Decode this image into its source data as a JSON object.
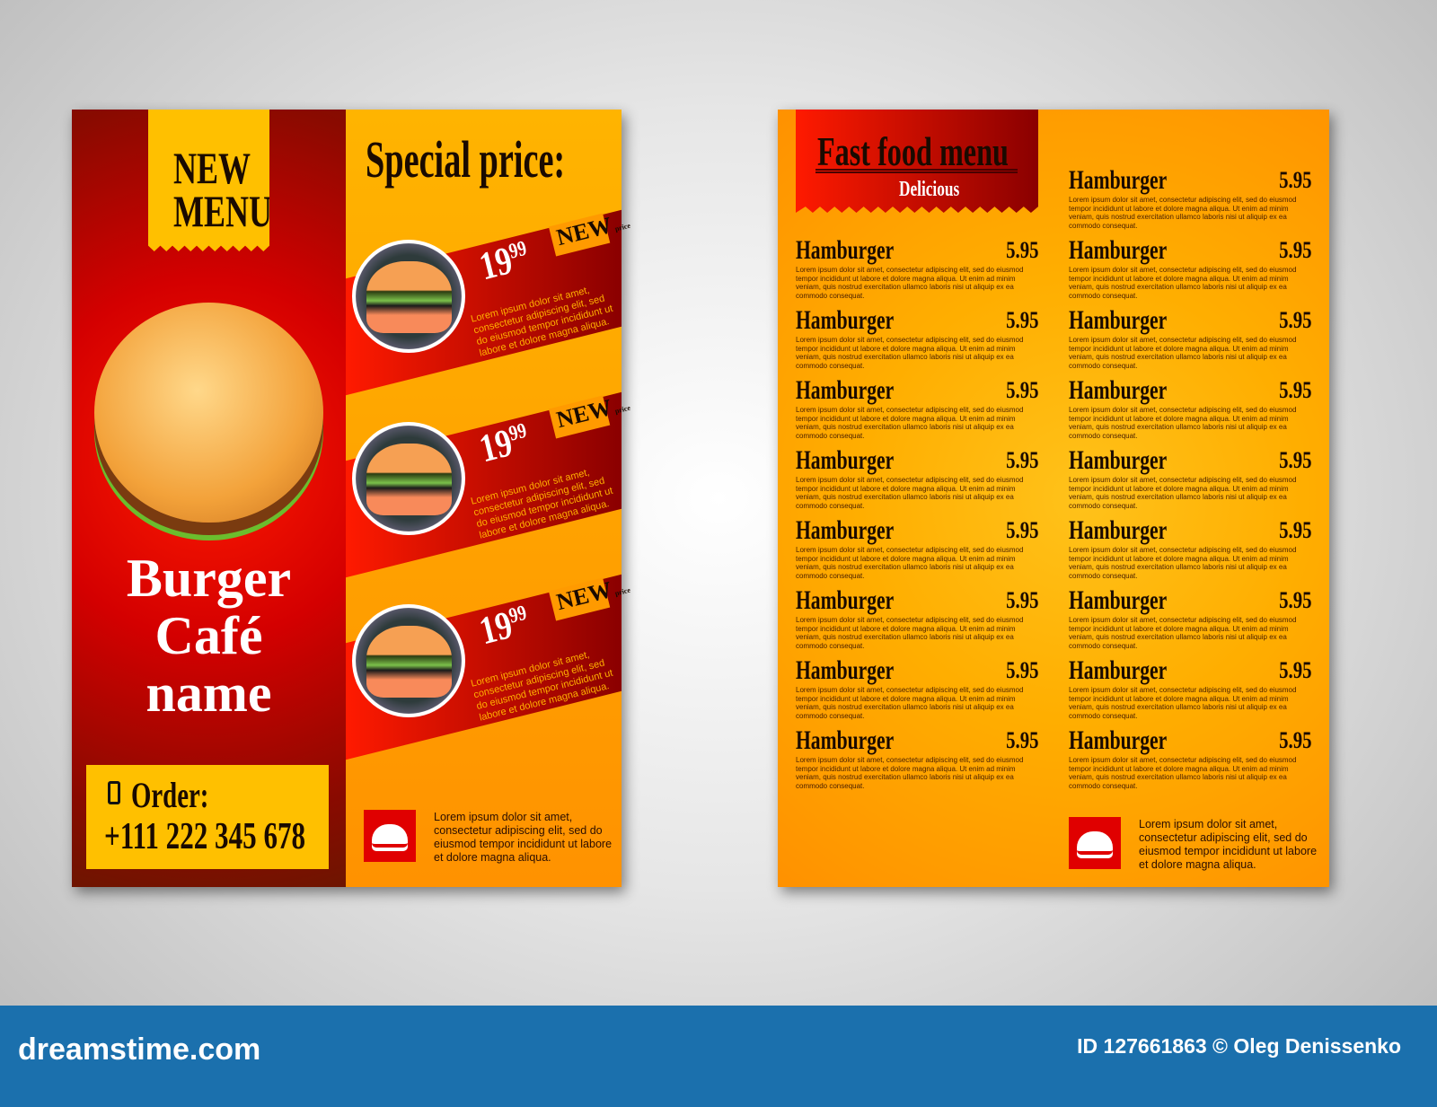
{
  "front": {
    "new_menu": [
      "NEW",
      "MENU"
    ],
    "cafe_name": [
      "Burger",
      "Café",
      "name"
    ],
    "order_label": "Order:",
    "phone": "+111 222 345 678",
    "special_title": "Special price:",
    "specials": [
      {
        "price": "19",
        "cents": "99",
        "tag": "NEW",
        "tag_small": "price",
        "text": "Lorem ipsum dolor sit amet, consectetur adipiscing elit, sed do eiusmod tempor incididunt ut labore et dolore magna aliqua."
      },
      {
        "price": "19",
        "cents": "99",
        "tag": "NEW",
        "tag_small": "price",
        "text": "Lorem ipsum dolor sit amet, consectetur adipiscing elit, sed do eiusmod tempor incididunt ut labore et dolore magna aliqua."
      },
      {
        "price": "19",
        "cents": "99",
        "tag": "NEW",
        "tag_small": "price",
        "text": "Lorem ipsum dolor sit amet, consectetur adipiscing elit, sed do eiusmod tempor incididunt ut labore et dolore magna aliqua."
      }
    ],
    "footer_text": "Lorem ipsum dolor sit amet, consectetur adipiscing elit, sed do eiusmod tempor incididunt ut labore et dolore magna aliqua."
  },
  "back": {
    "title": "Fast food menu",
    "subtitle": "Delicious",
    "item_desc": "Lorem ipsum dolor sit amet, consectetur adipiscing elit, sed do eiusmod tempor incididunt ut labore et dolore magna aliqua. Ut enim ad minim veniam, quis nostrud exercitation ullamco laboris nisi ut aliquip ex ea commodo consequat.",
    "left_items": [
      {
        "name": "Hamburger",
        "price": "5.95"
      },
      {
        "name": "Hamburger",
        "price": "5.95"
      },
      {
        "name": "Hamburger",
        "price": "5.95"
      },
      {
        "name": "Hamburger",
        "price": "5.95"
      },
      {
        "name": "Hamburger",
        "price": "5.95"
      },
      {
        "name": "Hamburger",
        "price": "5.95"
      },
      {
        "name": "Hamburger",
        "price": "5.95"
      },
      {
        "name": "Hamburger",
        "price": "5.95"
      }
    ],
    "right_items": [
      {
        "name": "Hamburger",
        "price": "5.95"
      },
      {
        "name": "Hamburger",
        "price": "5.95"
      },
      {
        "name": "Hamburger",
        "price": "5.95"
      },
      {
        "name": "Hamburger",
        "price": "5.95"
      },
      {
        "name": "Hamburger",
        "price": "5.95"
      },
      {
        "name": "Hamburger",
        "price": "5.95"
      },
      {
        "name": "Hamburger",
        "price": "5.95"
      },
      {
        "name": "Hamburger",
        "price": "5.95"
      },
      {
        "name": "Hamburger",
        "price": "5.95"
      }
    ],
    "footer_text": "Lorem ipsum dolor sit amet, consectetur adipiscing elit, sed do eiusmod tempor incididunt ut labore et dolore magna aliqua."
  },
  "watermark": {
    "site": "dreamstime.com",
    "credit": "ID 127661863 © Oleg Denissenko"
  },
  "colors": {
    "red": "#e00000",
    "orange": "#ff9a00",
    "yellow": "#ffc000",
    "footer_blue": "#1b70ad"
  }
}
